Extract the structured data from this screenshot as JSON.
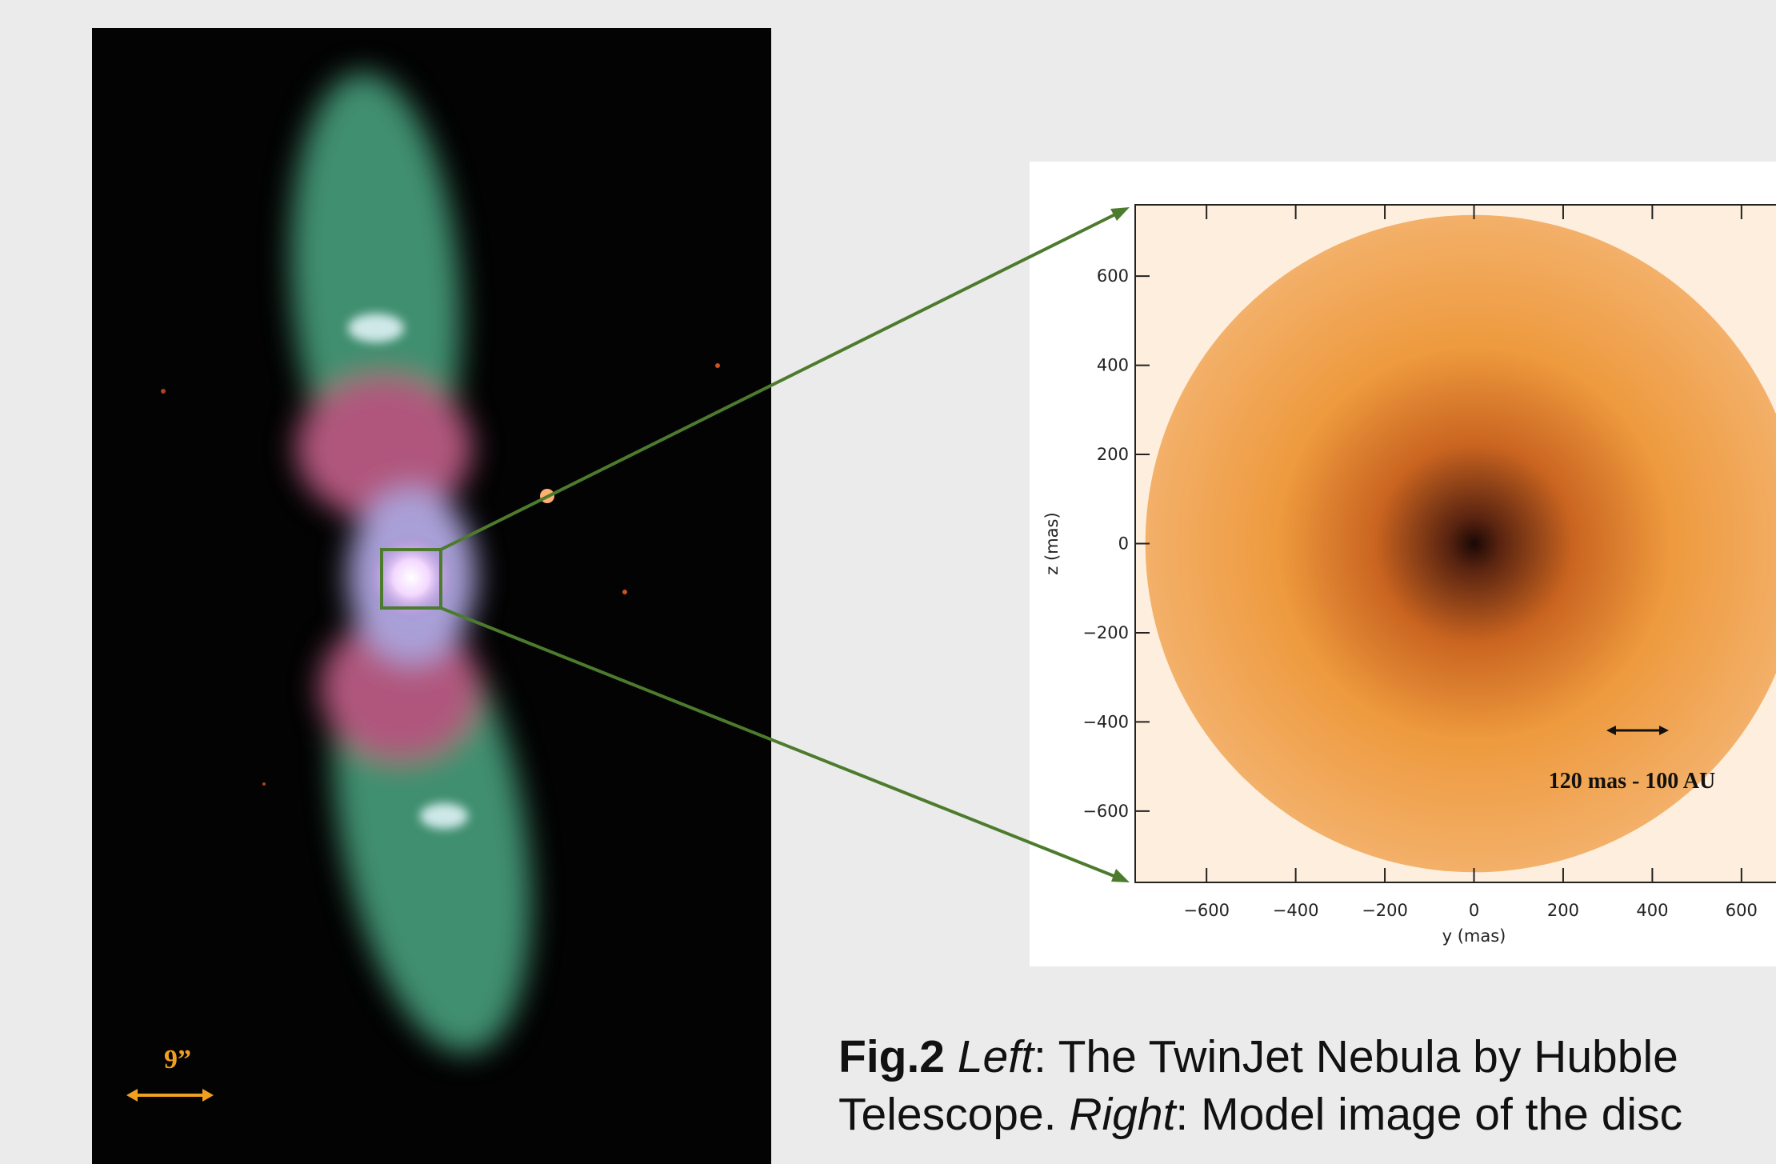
{
  "left_image": {
    "scale_label": "9”"
  },
  "model_panel": {
    "xlabel": "y (mas)",
    "ylabel": "z (mas)",
    "xlim": [
      -760,
      760
    ],
    "ylim": [
      -760,
      760
    ],
    "xticks": [
      {
        "value": -600,
        "label": "−600"
      },
      {
        "value": -400,
        "label": "−400"
      },
      {
        "value": -200,
        "label": "−200"
      },
      0,
      200,
      400,
      600
    ],
    "yticks": [
      {
        "value": -600,
        "label": "−600"
      },
      {
        "value": -400,
        "label": "−400"
      },
      {
        "value": -200,
        "label": "−200"
      },
      0,
      200,
      400,
      600
    ],
    "scale_label": "120 mas - 100 AU"
  },
  "caption": {
    "lines": [
      [
        {
          "text": "Fig.2 ",
          "style": "bold"
        },
        {
          "text": "Left",
          "style": "italic"
        },
        {
          "text": ": The TwinJet Nebula by Hubble",
          "style": "normal"
        }
      ],
      [
        {
          "text": "Telescope. ",
          "style": "normal"
        },
        {
          "text": "Right",
          "style": "italic"
        },
        {
          "text": ": Model image of the disc",
          "style": "normal"
        }
      ]
    ]
  }
}
